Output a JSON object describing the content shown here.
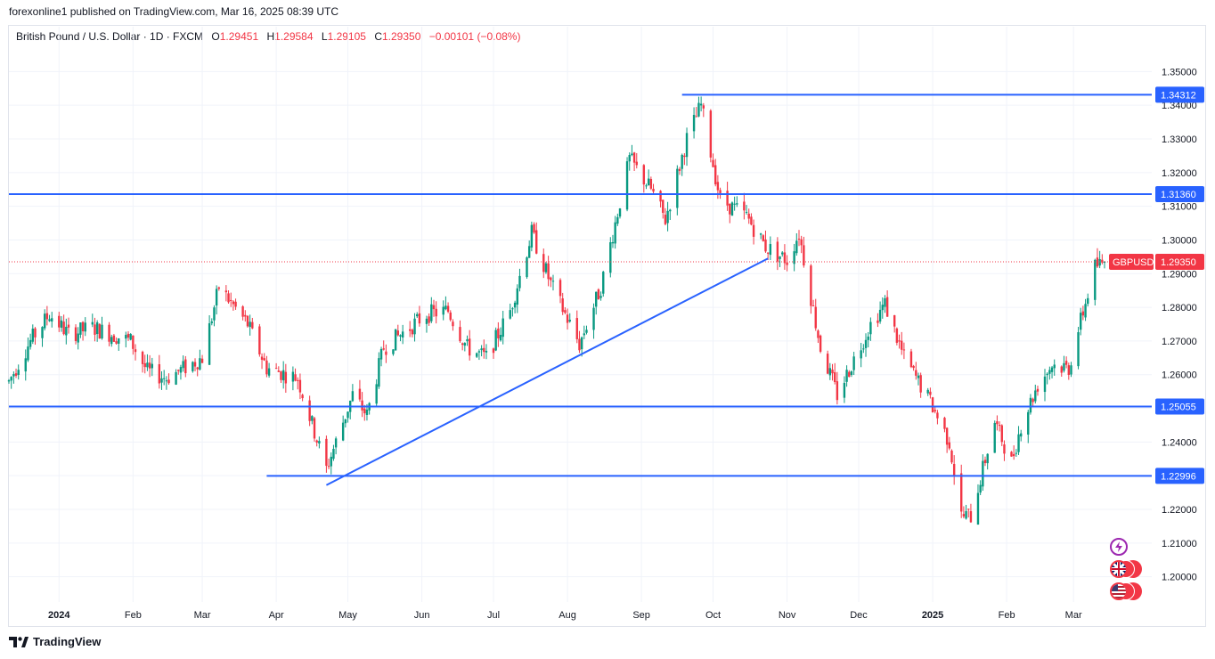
{
  "publish_line": "forexonline1 published on TradingView.com, Mar 16, 2025 08:39 UTC",
  "legend": {
    "symbol": "British Pound / U.S. Dollar · 1D · FXCM",
    "open_label": "O",
    "open": "1.29451",
    "high_label": "H",
    "high": "1.29584",
    "low_label": "L",
    "low": "1.29105",
    "close_label": "C",
    "close": "1.29350",
    "change": "−0.00101 (−0.08%)"
  },
  "footer": {
    "brand": "TradingView"
  },
  "colors": {
    "up": "#089981",
    "down": "#f23645",
    "line": "#2962ff",
    "price_label": "#f23645",
    "grid": "#f0f3fa",
    "axis_text": "#131722"
  },
  "side_icons": [
    "lightning-icon",
    "uk-flag-event-icon",
    "us-flag-event-icon"
  ],
  "chart_data": {
    "type": "candlestick",
    "symbol": "GBPUSD",
    "timeframe": "1D",
    "current_price": 1.2935,
    "current_price_label": "1.29350",
    "current_price_tag": "GBPUSD",
    "ylim": [
      1.1925,
      1.3575
    ],
    "y_ticks": [
      "1.35000",
      "1.34000",
      "1.33000",
      "1.32000",
      "1.31000",
      "1.30000",
      "1.29000",
      "1.28000",
      "1.27000",
      "1.26000",
      "1.25000",
      "1.24000",
      "1.23000",
      "1.22000",
      "1.21000",
      "1.20000"
    ],
    "y_tick_values": [
      1.35,
      1.34,
      1.33,
      1.32,
      1.31,
      1.3,
      1.29,
      1.28,
      1.27,
      1.26,
      1.25,
      1.24,
      1.23,
      1.22,
      1.21,
      1.2
    ],
    "x_ticks": [
      {
        "label": "2024",
        "date": "2024-01-01",
        "bold": true
      },
      {
        "label": "Feb",
        "date": "2024-02-01",
        "bold": false
      },
      {
        "label": "Mar",
        "date": "2024-03-01",
        "bold": false
      },
      {
        "label": "Apr",
        "date": "2024-04-01",
        "bold": false
      },
      {
        "label": "May",
        "date": "2024-05-01",
        "bold": false
      },
      {
        "label": "Jun",
        "date": "2024-06-01",
        "bold": false
      },
      {
        "label": "Jul",
        "date": "2024-07-01",
        "bold": false
      },
      {
        "label": "Aug",
        "date": "2024-08-01",
        "bold": false
      },
      {
        "label": "Sep",
        "date": "2024-09-01",
        "bold": false
      },
      {
        "label": "Oct",
        "date": "2024-10-01",
        "bold": false
      },
      {
        "label": "Nov",
        "date": "2024-11-01",
        "bold": false
      },
      {
        "label": "Dec",
        "date": "2024-12-01",
        "bold": false
      },
      {
        "label": "2025",
        "date": "2025-01-01",
        "bold": true
      },
      {
        "label": "Feb",
        "date": "2025-02-01",
        "bold": false
      },
      {
        "label": "Mar",
        "date": "2025-03-01",
        "bold": false
      }
    ],
    "date_range": [
      "2023-12-11",
      "2025-03-14"
    ],
    "horizontal_levels": [
      {
        "value": 1.34312,
        "label": "1.34312",
        "from_date": "2024-09-18"
      },
      {
        "value": 1.3136,
        "label": "1.31360",
        "from_date": "2023-12-11"
      },
      {
        "value": 1.25055,
        "label": "1.25055",
        "from_date": "2023-12-11"
      },
      {
        "value": 1.22996,
        "label": "1.22996",
        "from_date": "2024-03-28"
      }
    ],
    "trendline": {
      "from": {
        "date": "2024-04-22",
        "value": 1.2272
      },
      "to": {
        "date": "2024-10-24",
        "value": 1.2945
      }
    },
    "anchors": [
      [
        "2023-12-11",
        1.258
      ],
      [
        "2023-12-20",
        1.27
      ],
      [
        "2023-12-28",
        1.278
      ],
      [
        "2024-01-05",
        1.272
      ],
      [
        "2024-01-15",
        1.274
      ],
      [
        "2024-01-31",
        1.27
      ],
      [
        "2024-02-07",
        1.261
      ],
      [
        "2024-02-15",
        1.259
      ],
      [
        "2024-03-01",
        1.265
      ],
      [
        "2024-03-08",
        1.286
      ],
      [
        "2024-03-20",
        1.275
      ],
      [
        "2024-03-28",
        1.262
      ],
      [
        "2024-04-10",
        1.259
      ],
      [
        "2024-04-17",
        1.243
      ],
      [
        "2024-04-22",
        1.232
      ],
      [
        "2024-05-03",
        1.254
      ],
      [
        "2024-05-09",
        1.248
      ],
      [
        "2024-05-16",
        1.268
      ],
      [
        "2024-06-03",
        1.278
      ],
      [
        "2024-06-12",
        1.279
      ],
      [
        "2024-06-20",
        1.268
      ],
      [
        "2024-06-28",
        1.265
      ],
      [
        "2024-07-08",
        1.279
      ],
      [
        "2024-07-17",
        1.302
      ],
      [
        "2024-07-25",
        1.287
      ],
      [
        "2024-08-06",
        1.269
      ],
      [
        "2024-08-15",
        1.286
      ],
      [
        "2024-08-27",
        1.324
      ],
      [
        "2024-09-05",
        1.315
      ],
      [
        "2024-09-11",
        1.306
      ],
      [
        "2024-09-20",
        1.33
      ],
      [
        "2024-09-26",
        1.34
      ],
      [
        "2024-10-04",
        1.312
      ],
      [
        "2024-10-15",
        1.307
      ],
      [
        "2024-10-23",
        1.298
      ],
      [
        "2024-11-01",
        1.294
      ],
      [
        "2024-11-06",
        1.302
      ],
      [
        "2024-11-15",
        1.268
      ],
      [
        "2024-11-22",
        1.254
      ],
      [
        "2024-12-06",
        1.275
      ],
      [
        "2024-12-12",
        1.281
      ],
      [
        "2024-12-20",
        1.265
      ],
      [
        "2024-12-31",
        1.252
      ],
      [
        "2025-01-08",
        1.24
      ],
      [
        "2025-01-13",
        1.218
      ],
      [
        "2025-01-17",
        1.218
      ],
      [
        "2025-01-27",
        1.246
      ],
      [
        "2025-02-03",
        1.234
      ],
      [
        "2025-02-07",
        1.245
      ],
      [
        "2025-02-14",
        1.257
      ],
      [
        "2025-02-20",
        1.263
      ],
      [
        "2025-02-27",
        1.262
      ],
      [
        "2025-03-04",
        1.276
      ],
      [
        "2025-03-10",
        1.292
      ],
      [
        "2025-03-14",
        1.2935
      ]
    ]
  }
}
